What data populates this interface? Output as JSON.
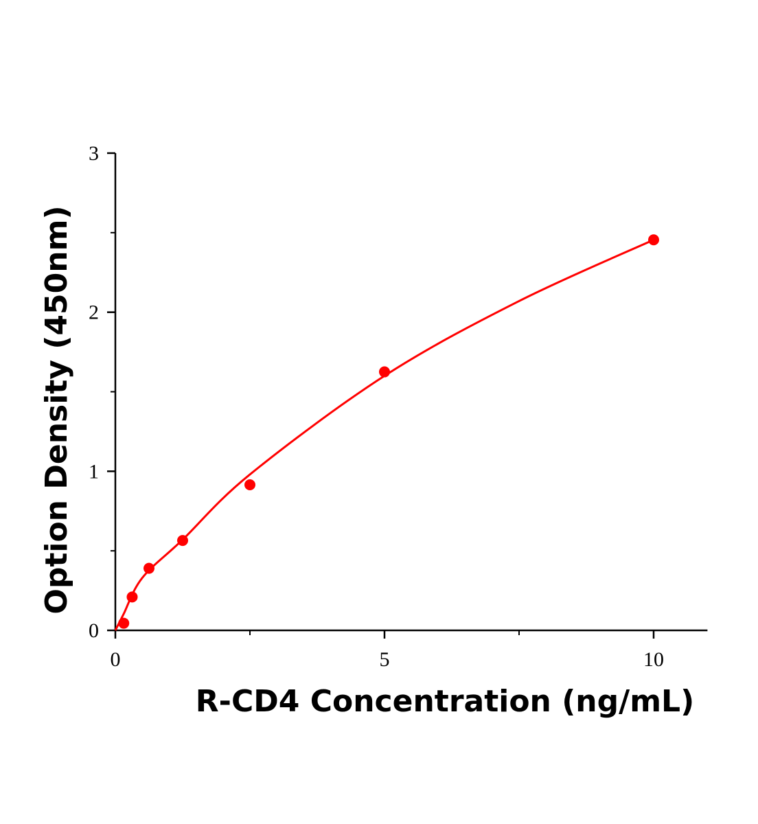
{
  "chart_data": {
    "type": "scatter",
    "title": "",
    "xlabel": "R-CD4 Concentration (ng/mL)",
    "ylabel": "Option Density (450nm)",
    "xlim": [
      0,
      11
    ],
    "ylim": [
      0,
      3
    ],
    "x_ticks": [
      0,
      5,
      10
    ],
    "x_tick_labels": [
      "0",
      "5",
      "10"
    ],
    "x_minor_ticks": [
      2.5,
      7.5
    ],
    "y_ticks": [
      0,
      1,
      2,
      3
    ],
    "y_tick_labels": [
      "0",
      "1",
      "2",
      "3"
    ],
    "y_minor_ticks": [
      0.5,
      1.5,
      2.5
    ],
    "grid": false,
    "color": "#ff0000",
    "series": [
      {
        "x": [
          0.156,
          0.3125,
          0.625,
          1.25,
          2.5,
          5,
          10
        ],
        "y": [
          0.045,
          0.21,
          0.39,
          0.565,
          0.915,
          1.625,
          2.455
        ]
      }
    ],
    "fit_curve": {
      "x": [
        0,
        0.15,
        0.5,
        1.25,
        2.5,
        5,
        7.5,
        10
      ],
      "y": [
        0,
        0.1,
        0.33,
        0.57,
        0.98,
        1.6,
        2.07,
        2.455
      ]
    }
  }
}
